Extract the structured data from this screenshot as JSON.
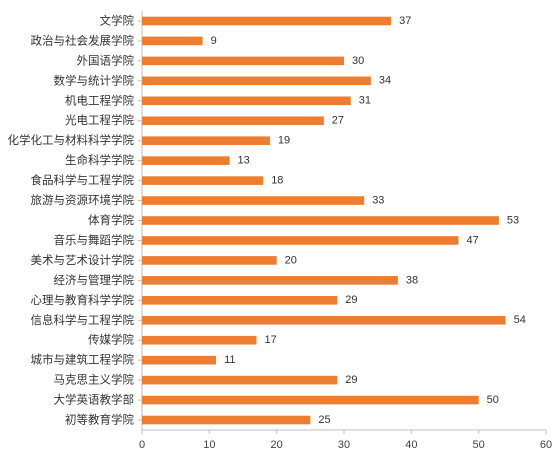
{
  "chart_data": {
    "type": "bar",
    "orientation": "horizontal",
    "categories": [
      "文学院",
      "政治与社会发展学院",
      "外国语学院",
      "数学与统计学院",
      "机电工程学院",
      "光电工程学院",
      "化学化工与材料科学学院",
      "生命科学学院",
      "食品科学与工程学院",
      "旅游与资源环境学院",
      "体育学院",
      "音乐与舞蹈学院",
      "美术与艺术设计学院",
      "经济与管理学院",
      "心理与教育科学学院",
      "信息科学与工程学院",
      "传媒学院",
      "城市与建筑工程学院",
      "马克思主义学院",
      "大学英语教学部",
      "初等教育学院"
    ],
    "values": [
      37,
      9,
      30,
      34,
      31,
      27,
      19,
      13,
      18,
      33,
      53,
      47,
      20,
      38,
      29,
      54,
      17,
      11,
      29,
      50,
      25
    ],
    "xlim": [
      0,
      60
    ],
    "xticks": [
      0,
      10,
      20,
      30,
      40,
      50,
      60
    ],
    "title": "",
    "xlabel": "",
    "ylabel": "",
    "grid": false,
    "bar_color": "#ed7d31",
    "data_labels": true
  }
}
